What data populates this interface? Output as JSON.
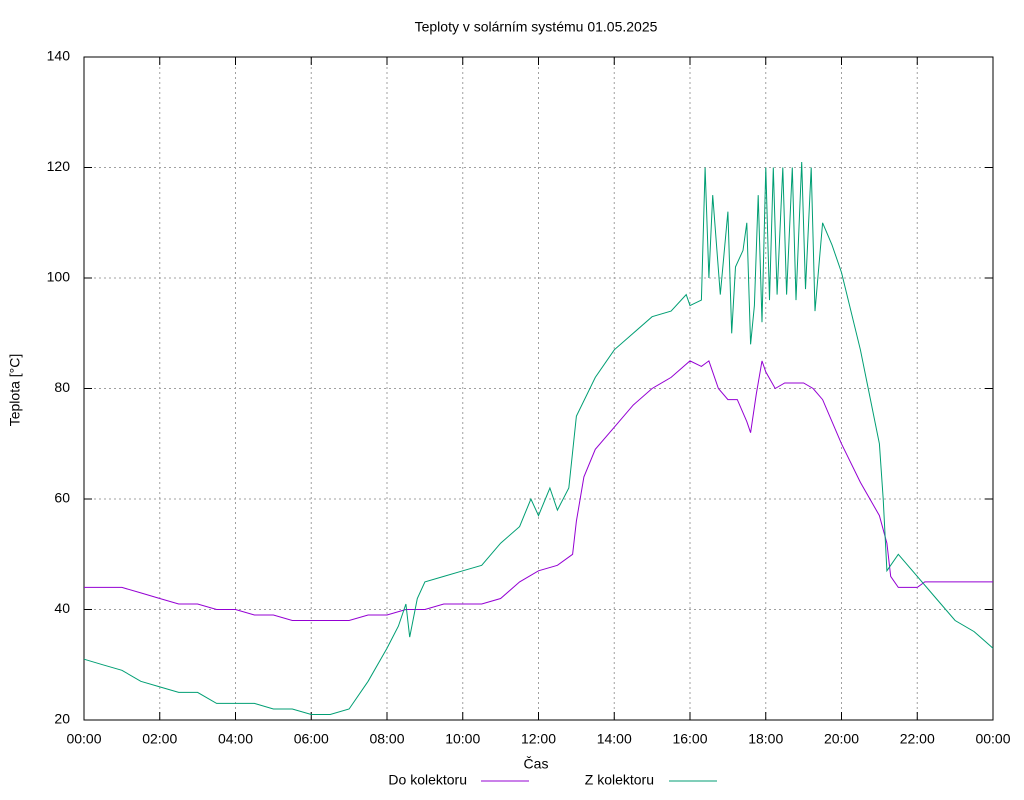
{
  "chart_data": {
    "type": "line",
    "title": "Teploty v solárním systému 01.05.2025",
    "x_label": "Čas",
    "y_label": "Teplota [°C]",
    "xlim": [
      0,
      24
    ],
    "xticks": [
      {
        "value": 0,
        "label": "00:00"
      },
      {
        "value": 2,
        "label": "02:00"
      },
      {
        "value": 4,
        "label": "04:00"
      },
      {
        "value": 6,
        "label": "06:00"
      },
      {
        "value": 8,
        "label": "08:00"
      },
      {
        "value": 10,
        "label": "10:00"
      },
      {
        "value": 12,
        "label": "12:00"
      },
      {
        "value": 14,
        "label": "14:00"
      },
      {
        "value": 16,
        "label": "16:00"
      },
      {
        "value": 18,
        "label": "18:00"
      },
      {
        "value": 20,
        "label": "20:00"
      },
      {
        "value": 22,
        "label": "22:00"
      },
      {
        "value": 24,
        "label": "00:00"
      }
    ],
    "ylim": [
      20,
      140
    ],
    "yticks": [
      20,
      40,
      60,
      80,
      100,
      120,
      140
    ],
    "grid": true,
    "legend": "bottom",
    "series": [
      {
        "name": "Do kolektoru",
        "color": "#9400d3",
        "x": [
          0,
          1,
          1.5,
          2,
          2.5,
          3,
          3.5,
          4,
          4.5,
          5,
          5.5,
          6,
          6.5,
          7,
          7.5,
          8,
          8.5,
          9,
          9.5,
          10,
          10.5,
          11,
          11.5,
          12,
          12.5,
          12.9,
          13,
          13.2,
          13.5,
          14,
          14.5,
          15,
          15.5,
          16,
          16.3,
          16.5,
          16.75,
          17,
          17.25,
          17.5,
          17.6,
          17.75,
          17.9,
          18,
          18.25,
          18.5,
          19,
          19.25,
          19.5,
          20,
          20.5,
          21,
          21.2,
          21.3,
          21.5,
          22,
          22.2,
          23,
          24
        ],
        "values": [
          44,
          44,
          43,
          42,
          41,
          41,
          40,
          40,
          39,
          39,
          38,
          38,
          38,
          38,
          39,
          39,
          40,
          40,
          41,
          41,
          41,
          42,
          45,
          47,
          48,
          50,
          56,
          64,
          69,
          73,
          77,
          80,
          82,
          85,
          84,
          85,
          80,
          78,
          78,
          74,
          72,
          79,
          85,
          83,
          80,
          81,
          81,
          80,
          78,
          70,
          63,
          57,
          52,
          46,
          44,
          44,
          45,
          45,
          45
        ]
      },
      {
        "name": "Z kolektoru",
        "color": "#009e73",
        "x": [
          0,
          0.5,
          1,
          1.5,
          2,
          2.5,
          3,
          3.5,
          4,
          4.5,
          5,
          5.5,
          6,
          6.5,
          7,
          7.5,
          8,
          8.3,
          8.5,
          8.6,
          8.8,
          9,
          9.5,
          10,
          10.5,
          11,
          11.5,
          11.8,
          12,
          12.3,
          12.5,
          12.8,
          13,
          13.5,
          14,
          14.5,
          15,
          15.5,
          15.9,
          16,
          16.3,
          16.4,
          16.5,
          16.6,
          16.8,
          17,
          17.1,
          17.2,
          17.4,
          17.5,
          17.6,
          17.7,
          17.8,
          17.9,
          18,
          18.1,
          18.2,
          18.3,
          18.45,
          18.55,
          18.7,
          18.8,
          18.95,
          19.05,
          19.2,
          19.3,
          19.5,
          19.75,
          20,
          20.5,
          21,
          21.1,
          21.2,
          21.5,
          22,
          22.5,
          23,
          23.5,
          24
        ],
        "values": [
          31,
          30,
          29,
          27,
          26,
          25,
          25,
          23,
          23,
          23,
          22,
          22,
          21,
          21,
          22,
          27,
          33,
          37,
          41,
          35,
          42,
          45,
          46,
          47,
          48,
          52,
          55,
          60,
          57,
          62,
          58,
          62,
          75,
          82,
          87,
          90,
          93,
          94,
          97,
          95,
          96,
          120,
          100,
          115,
          97,
          112,
          90,
          102,
          105,
          110,
          88,
          95,
          115,
          92,
          120,
          96,
          120,
          97,
          120,
          97,
          120,
          96,
          121,
          98,
          120,
          94,
          110,
          106,
          101,
          87,
          70,
          60,
          47,
          50,
          46,
          42,
          38,
          36,
          33
        ]
      }
    ]
  }
}
